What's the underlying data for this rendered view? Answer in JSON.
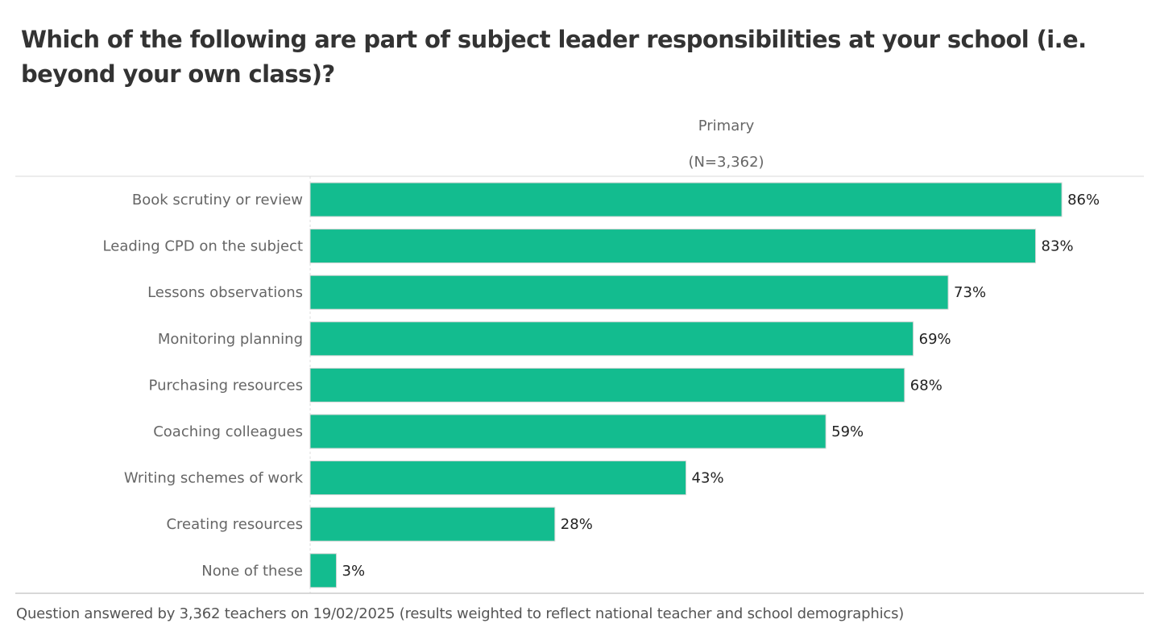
{
  "chart_data": {
    "type": "bar",
    "orientation": "horizontal",
    "title": "Which of the following are part of subject leader responsibilities at your school (i.e. beyond your own class)?",
    "column_header": "Primary",
    "column_subheader": "(N=3,362)",
    "categories": [
      "Book scrutiny or review",
      "Leading CPD on the subject",
      "Lessons observations",
      "Monitoring planning",
      "Purchasing resources",
      "Coaching colleagues",
      "Writing schemes of work",
      "Creating resources",
      "None of these"
    ],
    "series": [
      {
        "name": "Primary",
        "values": [
          86,
          83,
          73,
          69,
          68,
          59,
          43,
          28,
          3
        ]
      }
    ],
    "value_labels": [
      "86%",
      "83%",
      "73%",
      "69%",
      "68%",
      "59%",
      "43%",
      "28%",
      "3%"
    ],
    "xlim": [
      0,
      95
    ],
    "unit": "%",
    "bar_color": "#13bc8f",
    "grid": false,
    "legend": "none",
    "footnote": "Question answered by 3,362 teachers on 19/02/2025 (results weighted to reflect national teacher and school demographics)"
  }
}
